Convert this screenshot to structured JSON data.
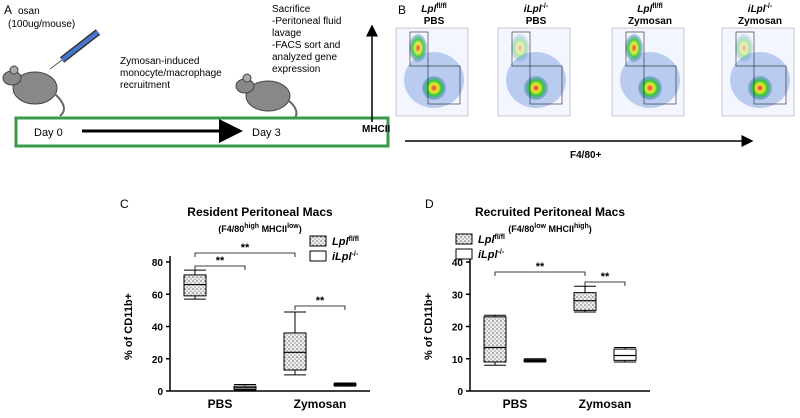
{
  "panel_a": {
    "label": "A",
    "dose": [
      "osan",
      "(100ug/mouse)"
    ],
    "recruitment": [
      "Zymosan-induced",
      "monocyte/macrophage",
      "recruitment"
    ],
    "sacrifice": [
      "Sacrifice",
      "-Peritoneal fluid",
      "lavage",
      "-FACS sort and",
      "analyzed gene",
      "expression"
    ],
    "day_start": "Day 0",
    "day_end": "Day 3"
  },
  "panel_b": {
    "label": "B",
    "columns": [
      {
        "genotype": "Lpl",
        "sup": "fl/fl",
        "treatment": "PBS"
      },
      {
        "genotype": "iLpl",
        "sup": "-/-",
        "treatment": "PBS"
      },
      {
        "genotype": "Lpl",
        "sup": "fl/fl",
        "treatment": "Zymosan"
      },
      {
        "genotype": "iLpl",
        "sup": "-/-",
        "treatment": "Zymosan"
      }
    ],
    "y_axis": "MHCII",
    "x_axis": "F4/80+"
  },
  "chart_data": [
    {
      "panel": "C",
      "type": "box",
      "title": "Resident Peritoneal Macs",
      "subtitle": [
        "(F4/80",
        "high",
        " MHCII",
        "low",
        ")"
      ],
      "y_label": "% of CD11b+",
      "categories": [
        "PBS",
        "Zymosan"
      ],
      "series": [
        {
          "name": "Lpl",
          "sup": "fl/fl",
          "pattern": "dots",
          "color": "#000000",
          "min": [
            57,
            10
          ],
          "q1": [
            59,
            13
          ],
          "median": [
            66,
            24
          ],
          "q3": [
            72,
            36
          ],
          "max": [
            75,
            49
          ]
        },
        {
          "name": "iLpl",
          "sup": "-/-",
          "pattern": "none",
          "color": "#000000",
          "min": [
            0.5,
            3
          ],
          "q1": [
            1,
            3.5
          ],
          "median": [
            2,
            4
          ],
          "q3": [
            3,
            4.5
          ],
          "max": [
            4,
            5
          ]
        }
      ],
      "ylim": [
        0,
        80
      ],
      "yticks": [
        0,
        20,
        40,
        60,
        80
      ],
      "annotations": [
        "**",
        "**",
        "**"
      ]
    },
    {
      "panel": "D",
      "type": "box",
      "title": "Recruited Peritoneal Macs",
      "subtitle": [
        "(F4/80",
        "low",
        " MHCII",
        "high",
        ")"
      ],
      "y_label": "% of CD11b+",
      "categories": [
        "PBS",
        "Zymosan"
      ],
      "series": [
        {
          "name": "Lpl",
          "sup": "fl/fl",
          "pattern": "dots",
          "color": "#000000",
          "min": [
            8,
            24.5
          ],
          "q1": [
            9,
            25
          ],
          "median": [
            13.5,
            28
          ],
          "q3": [
            23,
            30.5
          ],
          "max": [
            23.5,
            32.5
          ]
        },
        {
          "name": "iLpl",
          "sup": "-/-",
          "pattern": "none",
          "color": "#000000",
          "min": [
            9,
            9
          ],
          "q1": [
            9.2,
            9.5
          ],
          "median": [
            9.5,
            11
          ],
          "q3": [
            9.7,
            13
          ],
          "max": [
            10,
            13.5
          ]
        }
      ],
      "ylim": [
        0,
        40
      ],
      "yticks": [
        0,
        10,
        20,
        30,
        40
      ],
      "annotations": [
        "**",
        "**"
      ]
    }
  ]
}
